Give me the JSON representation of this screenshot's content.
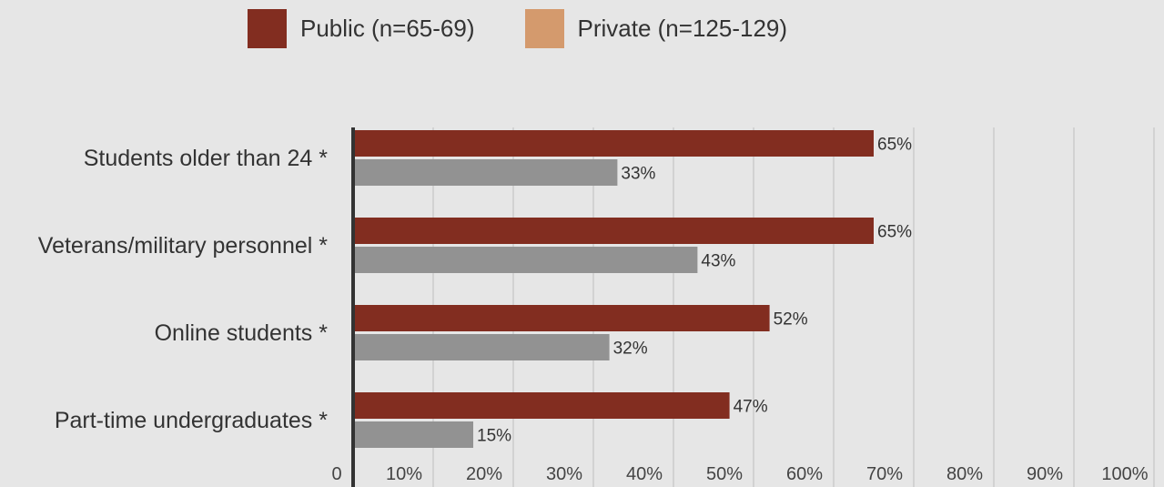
{
  "chart_data": {
    "type": "bar",
    "orientation": "horizontal",
    "categories": [
      "Students older than 24 *",
      "Veterans/military personnel *",
      "Online students *",
      "Part-time undergraduates *"
    ],
    "series": [
      {
        "name": "Public (n=65-69)",
        "legend_color": "#822d20",
        "bar_color": "#822d20",
        "values": [
          65,
          65,
          52,
          47
        ],
        "labels": [
          "65%",
          "65%",
          "52%",
          "47%"
        ]
      },
      {
        "name": "Private (n=125-129)",
        "legend_color": "#d49a6d",
        "bar_color": "#929292",
        "values": [
          33,
          43,
          32,
          15
        ],
        "labels": [
          "33%",
          "43%",
          "32%",
          "15%"
        ]
      }
    ],
    "x_ticks": [
      "0",
      "10%",
      "20%",
      "30%",
      "40%",
      "50%",
      "60%",
      "70%",
      "80%",
      "90%",
      "100%"
    ],
    "xlim": [
      0,
      100
    ],
    "title": "",
    "xlabel": "",
    "ylabel": "",
    "grid": true,
    "legend_position": "top"
  }
}
